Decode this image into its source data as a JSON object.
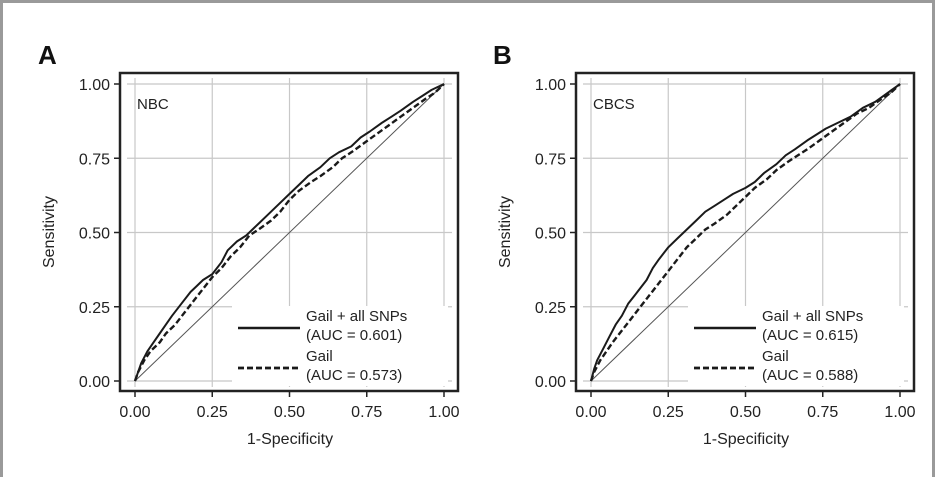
{
  "chart_data": [
    {
      "type": "line",
      "panel": "A",
      "inset_label": "NBC",
      "xlabel": "1-Specificity",
      "ylabel": "Sensitivity",
      "xlim": [
        0,
        1
      ],
      "ylim": [
        0,
        1
      ],
      "x_ticks": [
        "0.00",
        "0.25",
        "0.50",
        "0.75",
        "1.00"
      ],
      "y_ticks": [
        "0.00",
        "0.25",
        "0.50",
        "0.75",
        "1.00"
      ],
      "grid": true,
      "legend_position": "bottom-right",
      "series": [
        {
          "name": "Gail + all SNPs",
          "name_line2": "(AUC = 0.601)",
          "style": "solid",
          "x": [
            0,
            0.01,
            0.02,
            0.04,
            0.06,
            0.08,
            0.1,
            0.12,
            0.15,
            0.18,
            0.2,
            0.22,
            0.25,
            0.28,
            0.3,
            0.33,
            0.36,
            0.4,
            0.43,
            0.46,
            0.5,
            0.53,
            0.56,
            0.6,
            0.63,
            0.66,
            0.7,
            0.73,
            0.76,
            0.8,
            0.83,
            0.86,
            0.9,
            0.93,
            0.96,
            1.0
          ],
          "y": [
            0,
            0.03,
            0.06,
            0.1,
            0.13,
            0.16,
            0.19,
            0.22,
            0.26,
            0.3,
            0.32,
            0.34,
            0.36,
            0.4,
            0.44,
            0.47,
            0.49,
            0.53,
            0.56,
            0.59,
            0.63,
            0.66,
            0.69,
            0.72,
            0.75,
            0.77,
            0.79,
            0.82,
            0.84,
            0.87,
            0.89,
            0.91,
            0.94,
            0.96,
            0.98,
            1.0
          ]
        },
        {
          "name": "Gail",
          "name_line2": "(AUC = 0.573)",
          "style": "dashed",
          "x": [
            0,
            0.01,
            0.03,
            0.05,
            0.08,
            0.1,
            0.13,
            0.16,
            0.19,
            0.22,
            0.25,
            0.28,
            0.31,
            0.34,
            0.37,
            0.4,
            0.44,
            0.47,
            0.5,
            0.53,
            0.57,
            0.6,
            0.64,
            0.67,
            0.7,
            0.74,
            0.78,
            0.82,
            0.86,
            0.9,
            0.94,
            0.97,
            1.0
          ],
          "y": [
            0,
            0.03,
            0.07,
            0.1,
            0.13,
            0.16,
            0.19,
            0.23,
            0.27,
            0.31,
            0.35,
            0.38,
            0.42,
            0.45,
            0.49,
            0.51,
            0.54,
            0.57,
            0.61,
            0.64,
            0.67,
            0.69,
            0.72,
            0.75,
            0.77,
            0.8,
            0.83,
            0.86,
            0.89,
            0.92,
            0.95,
            0.97,
            1.0
          ]
        }
      ]
    },
    {
      "type": "line",
      "panel": "B",
      "inset_label": "CBCS",
      "xlabel": "1-Specificity",
      "ylabel": "Sensitivity",
      "xlim": [
        0,
        1
      ],
      "ylim": [
        0,
        1
      ],
      "x_ticks": [
        "0.00",
        "0.25",
        "0.50",
        "0.75",
        "1.00"
      ],
      "y_ticks": [
        "0.00",
        "0.25",
        "0.50",
        "0.75",
        "1.00"
      ],
      "grid": true,
      "legend_position": "bottom-right",
      "series": [
        {
          "name": "Gail + all SNPs",
          "name_line2": "(AUC = 0.615)",
          "style": "solid",
          "x": [
            0,
            0.01,
            0.02,
            0.04,
            0.06,
            0.08,
            0.1,
            0.12,
            0.15,
            0.18,
            0.2,
            0.22,
            0.25,
            0.28,
            0.31,
            0.34,
            0.37,
            0.4,
            0.43,
            0.46,
            0.5,
            0.53,
            0.56,
            0.6,
            0.63,
            0.66,
            0.7,
            0.73,
            0.76,
            0.8,
            0.84,
            0.88,
            0.92,
            0.96,
            1.0
          ],
          "y": [
            0,
            0.04,
            0.07,
            0.11,
            0.15,
            0.19,
            0.22,
            0.26,
            0.3,
            0.34,
            0.38,
            0.41,
            0.45,
            0.48,
            0.51,
            0.54,
            0.57,
            0.59,
            0.61,
            0.63,
            0.65,
            0.67,
            0.7,
            0.73,
            0.76,
            0.78,
            0.81,
            0.83,
            0.85,
            0.87,
            0.89,
            0.92,
            0.94,
            0.97,
            1.0
          ]
        },
        {
          "name": "Gail",
          "name_line2": "(AUC = 0.588)",
          "style": "dashed",
          "x": [
            0,
            0.01,
            0.03,
            0.05,
            0.07,
            0.1,
            0.13,
            0.16,
            0.19,
            0.22,
            0.25,
            0.28,
            0.31,
            0.34,
            0.37,
            0.4,
            0.44,
            0.47,
            0.5,
            0.53,
            0.57,
            0.6,
            0.64,
            0.67,
            0.7,
            0.74,
            0.78,
            0.82,
            0.86,
            0.9,
            0.94,
            0.97,
            1.0
          ],
          "y": [
            0,
            0.03,
            0.07,
            0.1,
            0.13,
            0.17,
            0.21,
            0.25,
            0.29,
            0.33,
            0.37,
            0.41,
            0.45,
            0.48,
            0.51,
            0.53,
            0.56,
            0.59,
            0.62,
            0.65,
            0.68,
            0.71,
            0.74,
            0.76,
            0.78,
            0.81,
            0.84,
            0.87,
            0.9,
            0.92,
            0.95,
            0.97,
            1.0
          ]
        }
      ]
    }
  ]
}
